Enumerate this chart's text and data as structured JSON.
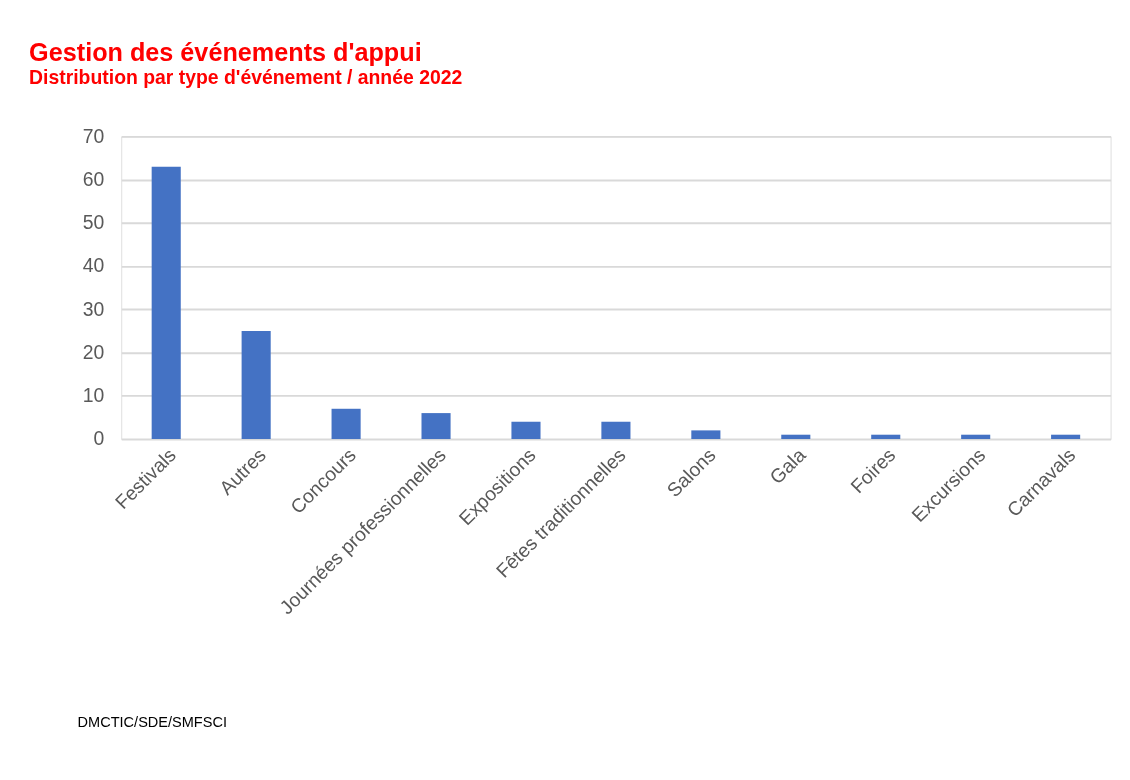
{
  "chart_data": {
    "type": "bar",
    "title": "Gestion des événements d'appui",
    "subtitle": "Distribution par type d'événement / année 2022",
    "categories": [
      "Festivals",
      "Autres",
      "Concours",
      "Journées professionnelles",
      "Expositions",
      "Fêtes traditionnelles",
      "Salons",
      "Gala",
      "Foires",
      "Excursions",
      "Carnavals"
    ],
    "values": [
      63,
      25,
      7,
      6,
      4,
      4,
      2,
      1,
      1,
      1,
      1
    ],
    "color": "#4472c4",
    "ylim": [
      0,
      70
    ],
    "yticks": [
      0,
      10,
      20,
      30,
      40,
      50,
      60,
      70
    ],
    "grid": "y",
    "annotations": [
      "DMCTIC/SDE/SMFSCI"
    ]
  }
}
